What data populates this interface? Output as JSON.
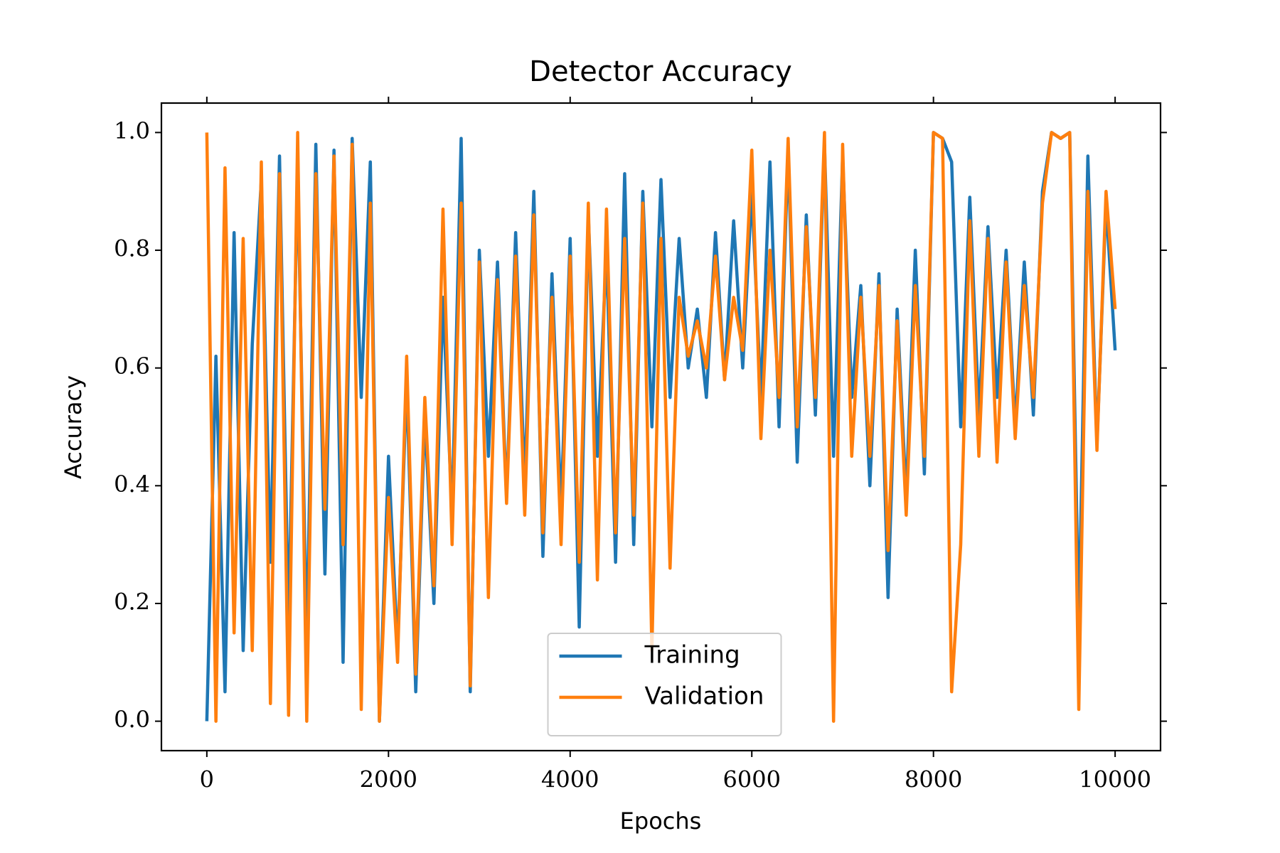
{
  "chart_data": {
    "type": "line",
    "title": "Detector Accuracy",
    "x_label": "Epochs",
    "y_label": "Accuracy",
    "x": [
      0,
      100,
      200,
      300,
      400,
      500,
      600,
      700,
      800,
      900,
      1000,
      1100,
      1200,
      1300,
      1400,
      1500,
      1600,
      1700,
      1800,
      1900,
      2000,
      2100,
      2200,
      2300,
      2400,
      2500,
      2600,
      2700,
      2800,
      2900,
      3000,
      3100,
      3200,
      3300,
      3400,
      3500,
      3600,
      3700,
      3800,
      3900,
      4000,
      4100,
      4200,
      4300,
      4400,
      4500,
      4600,
      4700,
      4800,
      4900,
      5000,
      5100,
      5200,
      5300,
      5400,
      5500,
      5600,
      5700,
      5800,
      5900,
      6000,
      6100,
      6200,
      6300,
      6400,
      6500,
      6600,
      6700,
      6800,
      6900,
      7000,
      7100,
      7200,
      7300,
      7400,
      7500,
      7600,
      7700,
      7800,
      7900,
      8000,
      8100,
      8200,
      8300,
      8400,
      8500,
      8600,
      8700,
      8800,
      8900,
      9000,
      9100,
      9200,
      9300,
      9400,
      9500,
      9600,
      9700,
      9800,
      9900,
      10000
    ],
    "series": [
      {
        "name": "Training",
        "color": "#1f77b4",
        "values": [
          0.0,
          0.62,
          0.05,
          0.83,
          0.12,
          0.64,
          0.92,
          0.27,
          0.96,
          0.16,
          0.94,
          0.12,
          0.98,
          0.25,
          0.97,
          0.1,
          0.99,
          0.55,
          0.95,
          0.0,
          0.45,
          0.12,
          0.58,
          0.05,
          0.52,
          0.2,
          0.72,
          0.35,
          0.99,
          0.05,
          0.8,
          0.45,
          0.78,
          0.38,
          0.83,
          0.4,
          0.9,
          0.28,
          0.76,
          0.36,
          0.82,
          0.16,
          0.86,
          0.45,
          0.8,
          0.27,
          0.93,
          0.3,
          0.9,
          0.5,
          0.92,
          0.55,
          0.82,
          0.6,
          0.7,
          0.55,
          0.83,
          0.58,
          0.85,
          0.6,
          0.9,
          0.55,
          0.95,
          0.5,
          0.97,
          0.44,
          0.86,
          0.52,
          0.98,
          0.45,
          0.96,
          0.55,
          0.74,
          0.4,
          0.76,
          0.21,
          0.7,
          0.38,
          0.8,
          0.42,
          1.0,
          0.99,
          0.95,
          0.5,
          0.89,
          0.52,
          0.84,
          0.55,
          0.8,
          0.5,
          0.78,
          0.52,
          0.9,
          1.0,
          0.99,
          1.0,
          0.16,
          0.96,
          0.47,
          0.88,
          0.63
        ]
      },
      {
        "name": "Validation",
        "color": "#ff7f0e",
        "values": [
          1.0,
          0.0,
          0.94,
          0.15,
          0.82,
          0.12,
          0.95,
          0.03,
          0.93,
          0.01,
          1.0,
          0.0,
          0.93,
          0.36,
          0.96,
          0.3,
          0.98,
          0.02,
          0.88,
          0.0,
          0.38,
          0.1,
          0.62,
          0.08,
          0.55,
          0.23,
          0.87,
          0.3,
          0.88,
          0.06,
          0.78,
          0.21,
          0.75,
          0.37,
          0.79,
          0.35,
          0.86,
          0.32,
          0.72,
          0.3,
          0.79,
          0.27,
          0.88,
          0.24,
          0.87,
          0.32,
          0.82,
          0.35,
          0.88,
          0.12,
          0.82,
          0.26,
          0.72,
          0.62,
          0.68,
          0.6,
          0.79,
          0.58,
          0.72,
          0.63,
          0.97,
          0.48,
          0.8,
          0.55,
          0.99,
          0.5,
          0.84,
          0.55,
          1.0,
          0.0,
          0.98,
          0.45,
          0.72,
          0.45,
          0.74,
          0.29,
          0.68,
          0.35,
          0.74,
          0.45,
          1.0,
          0.99,
          0.05,
          0.3,
          0.85,
          0.45,
          0.82,
          0.44,
          0.78,
          0.48,
          0.74,
          0.55,
          0.88,
          1.0,
          0.99,
          1.0,
          0.02,
          0.9,
          0.46,
          0.9,
          0.7
        ]
      }
    ],
    "xlim": [
      -500,
      10500
    ],
    "ylim": [
      -0.05,
      1.05
    ],
    "xticks": [
      0,
      2000,
      4000,
      6000,
      8000,
      10000
    ],
    "yticks": [
      {
        "value": 0,
        "label": "0.0"
      },
      {
        "value": 0.2,
        "label": "0.2"
      },
      {
        "value": 0.4,
        "label": "0.4"
      },
      {
        "value": 0.6,
        "label": "0.6"
      },
      {
        "value": 0.8,
        "label": "0.8"
      },
      {
        "value": 1,
        "label": "1.0"
      }
    ],
    "legend": "lower center"
  }
}
